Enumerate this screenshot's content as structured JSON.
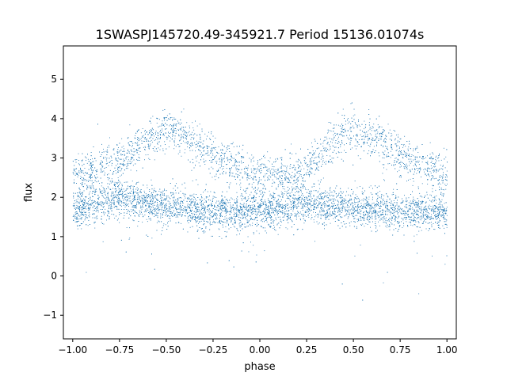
{
  "chart_data": {
    "type": "scatter",
    "title": "1SWASPJ145720.49-345921.7 Period 15136.01074s",
    "xlabel": "phase",
    "ylabel": "flux",
    "xlim": [
      -1.05,
      1.05
    ],
    "ylim": [
      -1.6,
      5.85
    ],
    "x_ticks": [
      -1.0,
      -0.75,
      -0.5,
      -0.25,
      0.0,
      0.25,
      0.5,
      0.75,
      1.0
    ],
    "x_tick_labels": [
      "−1.00",
      "−0.75",
      "−0.50",
      "−0.25",
      "0.00",
      "0.25",
      "0.50",
      "0.75",
      "1.00"
    ],
    "y_ticks": [
      -1,
      0,
      1,
      2,
      3,
      4,
      5
    ],
    "y_tick_labels": [
      "−1",
      "0",
      "1",
      "2",
      "3",
      "4",
      "5"
    ],
    "grid": false,
    "marker_color": "#1f77b4",
    "marker": "small dots",
    "series": [
      {
        "name": "",
        "description_points": [
          {
            "x": -1.0,
            "y": 1.7
          },
          {
            "x": -0.75,
            "y": 2.0
          },
          {
            "x": -0.5,
            "y": 1.8
          },
          {
            "x": -0.25,
            "y": 1.65
          },
          {
            "x": 0.0,
            "y": 1.65
          },
          {
            "x": 0.25,
            "y": 1.85
          },
          {
            "x": 0.5,
            "y": 1.75
          },
          {
            "x": 0.75,
            "y": 1.65
          },
          {
            "x": 1.0,
            "y": 1.65
          }
        ],
        "upper_branch_points": [
          {
            "x": -1.0,
            "y": 2.6
          },
          {
            "x": -0.75,
            "y": 2.9
          },
          {
            "x": -0.6,
            "y": 3.5
          },
          {
            "x": -0.5,
            "y": 3.75
          },
          {
            "x": -0.4,
            "y": 3.55
          },
          {
            "x": -0.25,
            "y": 3.1
          },
          {
            "x": -0.1,
            "y": 2.75
          },
          {
            "x": 0.0,
            "y": 2.5
          },
          {
            "x": 0.25,
            "y": 2.7
          },
          {
            "x": 0.4,
            "y": 3.5
          },
          {
            "x": 0.5,
            "y": 3.75
          },
          {
            "x": 0.6,
            "y": 3.55
          },
          {
            "x": 0.75,
            "y": 3.1
          },
          {
            "x": 0.9,
            "y": 2.8
          },
          {
            "x": 1.0,
            "y": 2.6
          }
        ]
      }
    ]
  }
}
